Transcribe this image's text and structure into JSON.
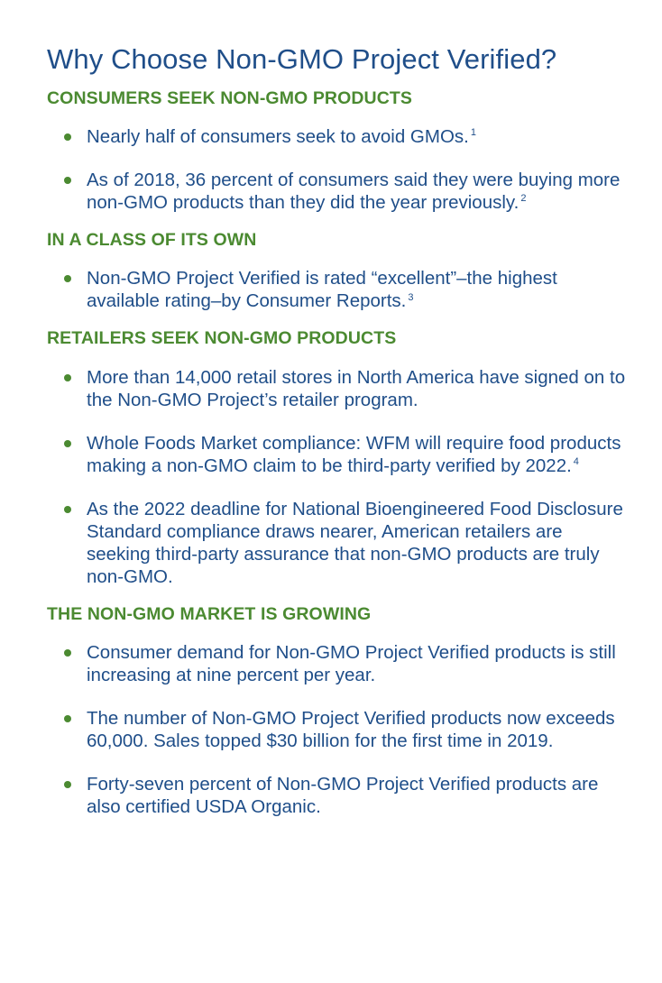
{
  "title": "Why Choose Non-GMO Project Verified?",
  "sections": [
    {
      "heading": "CONSUMERS SEEK NON-GMO PRODUCTS",
      "items": [
        {
          "text": "Nearly half of consumers seek to avoid GMOs.",
          "footnote": "1"
        },
        {
          "text": "As of 2018, 36 percent of consumers said they were buying more non-GMO products than they did the year previously.",
          "footnote": "2"
        }
      ]
    },
    {
      "heading": "IN A CLASS OF ITS OWN",
      "items": [
        {
          "text": "Non-GMO Project Verified is rated “excellent”–the highest available rating–by Consumer Reports.",
          "footnote": "3"
        }
      ]
    },
    {
      "heading": "RETAILERS SEEK NON-GMO PRODUCTS",
      "items": [
        {
          "text": "More than 14,000 retail stores in North America have signed on to the Non-GMO Project’s retailer program.",
          "footnote": ""
        },
        {
          "text": "Whole Foods Market compliance: WFM will require food products making a non-GMO claim to be third-party verified by 2022.",
          "footnote": "4"
        },
        {
          "text": "As the 2022 deadline for National Bioengineered Food Disclosure Standard compliance draws nearer, American retailers are seeking third-party assurance that non-GMO products are truly non-GMO.",
          "footnote": ""
        }
      ]
    },
    {
      "heading": "THE NON-GMO MARKET IS GROWING",
      "items": [
        {
          "text": "Consumer demand for Non-GMO Project Verified products is still increasing at nine percent per year.",
          "footnote": ""
        },
        {
          "text": "The number of Non-GMO Project Verified products now exceeds 60,000. Sales topped $30 billion for the first time in 2019.",
          "footnote": ""
        },
        {
          "text": "Forty-seven percent of Non-GMO Project Verified products are also certified USDA Organic.",
          "footnote": ""
        }
      ]
    }
  ],
  "colors": {
    "title": "#1f4e89",
    "heading": "#4b8a31",
    "body": "#1f4e89",
    "bullet": "#4b8a31"
  }
}
